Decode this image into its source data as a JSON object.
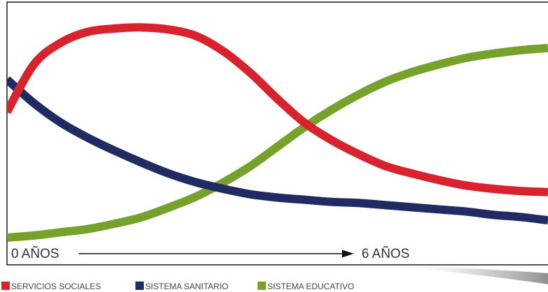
{
  "chart_data": {
    "type": "line",
    "title": "",
    "xlabel": "",
    "ylabel": "",
    "x_axis": {
      "start_label": "0 AÑOS",
      "end_label": "6 AÑOS"
    },
    "x": [
      0,
      0.5,
      1,
      1.5,
      2,
      2.5,
      3,
      3.5,
      4,
      4.5,
      5,
      5.5,
      6,
      6.5,
      7,
      7.5,
      8,
      8.5,
      9,
      9.5,
      10
    ],
    "xlim": [
      0,
      10
    ],
    "ylim": [
      0,
      100
    ],
    "grid": false,
    "legend_position": "bottom",
    "series": [
      {
        "name": "SERVICIOS SOCIALES",
        "color": "#d8232f",
        "values": [
          58,
          80,
          90,
          95,
          96.5,
          97,
          96,
          93,
          86,
          76,
          64,
          53,
          45,
          38.5,
          33,
          29.5,
          26.5,
          24,
          22.5,
          21.5,
          21
        ]
      },
      {
        "name": "SISTEMA SANITARIO",
        "color": "#1f2b61",
        "values": [
          73,
          62,
          53,
          46,
          40,
          34.5,
          29.5,
          25.5,
          22.5,
          20,
          18.5,
          17.5,
          16.5,
          16,
          15,
          14,
          13,
          12,
          10.5,
          9.5,
          8
        ]
      },
      {
        "name": "SISTEMA EDUCATIVO",
        "color": "#76a12a",
        "values": [
          0,
          1,
          2.5,
          4,
          6.5,
          9.5,
          14,
          19,
          25.5,
          33,
          42,
          51,
          59,
          66,
          72,
          76.5,
          80,
          83,
          85,
          86.5,
          87.5
        ]
      }
    ]
  }
}
